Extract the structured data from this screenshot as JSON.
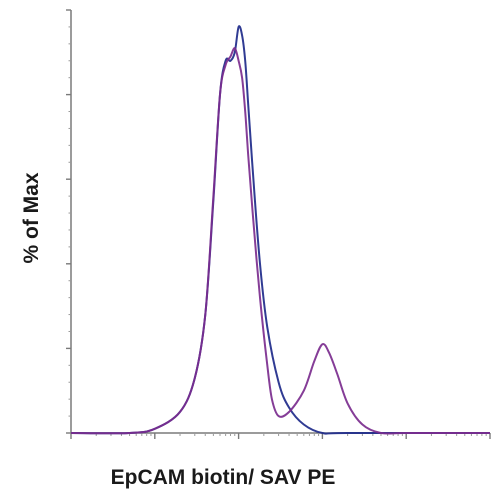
{
  "chart_data": {
    "type": "line",
    "title": "",
    "xlabel": "EpCAM biotin/ SAV PE",
    "ylabel": "% of Max",
    "x_scale": "log",
    "xlim": [
      1,
      100000
    ],
    "ylim": [
      0,
      100
    ],
    "grid": false,
    "legend": "none",
    "y_major_ticks": [
      0,
      20,
      40,
      60,
      80,
      100
    ],
    "series": [
      {
        "color": "#1e2a8a",
        "x": [
          1,
          5,
          10,
          20,
          30,
          40,
          50,
          60,
          70,
          80,
          90,
          100,
          110,
          120,
          130,
          150,
          180,
          220,
          300,
          400,
          600,
          1000,
          2000,
          100000
        ],
        "y": [
          0,
          0,
          1,
          5,
          13,
          28,
          55,
          80,
          88,
          88,
          90,
          96,
          94,
          88,
          78,
          60,
          40,
          25,
          12,
          6,
          2,
          0,
          0,
          0
        ]
      },
      {
        "color": "#7b2d8e",
        "x": [
          1,
          5,
          10,
          20,
          30,
          40,
          50,
          60,
          70,
          80,
          90,
          100,
          110,
          120,
          130,
          150,
          180,
          220,
          250,
          300,
          400,
          600,
          800,
          1000,
          1200,
          1500,
          2000,
          3000,
          5000,
          10000,
          100000
        ],
        "y": [
          0,
          0,
          1,
          5,
          13,
          28,
          56,
          80,
          87,
          89,
          91,
          88,
          84,
          76,
          66,
          50,
          32,
          16,
          8,
          4,
          5,
          10,
          17,
          21,
          19,
          14,
          7,
          2,
          0,
          0,
          0
        ]
      }
    ]
  }
}
